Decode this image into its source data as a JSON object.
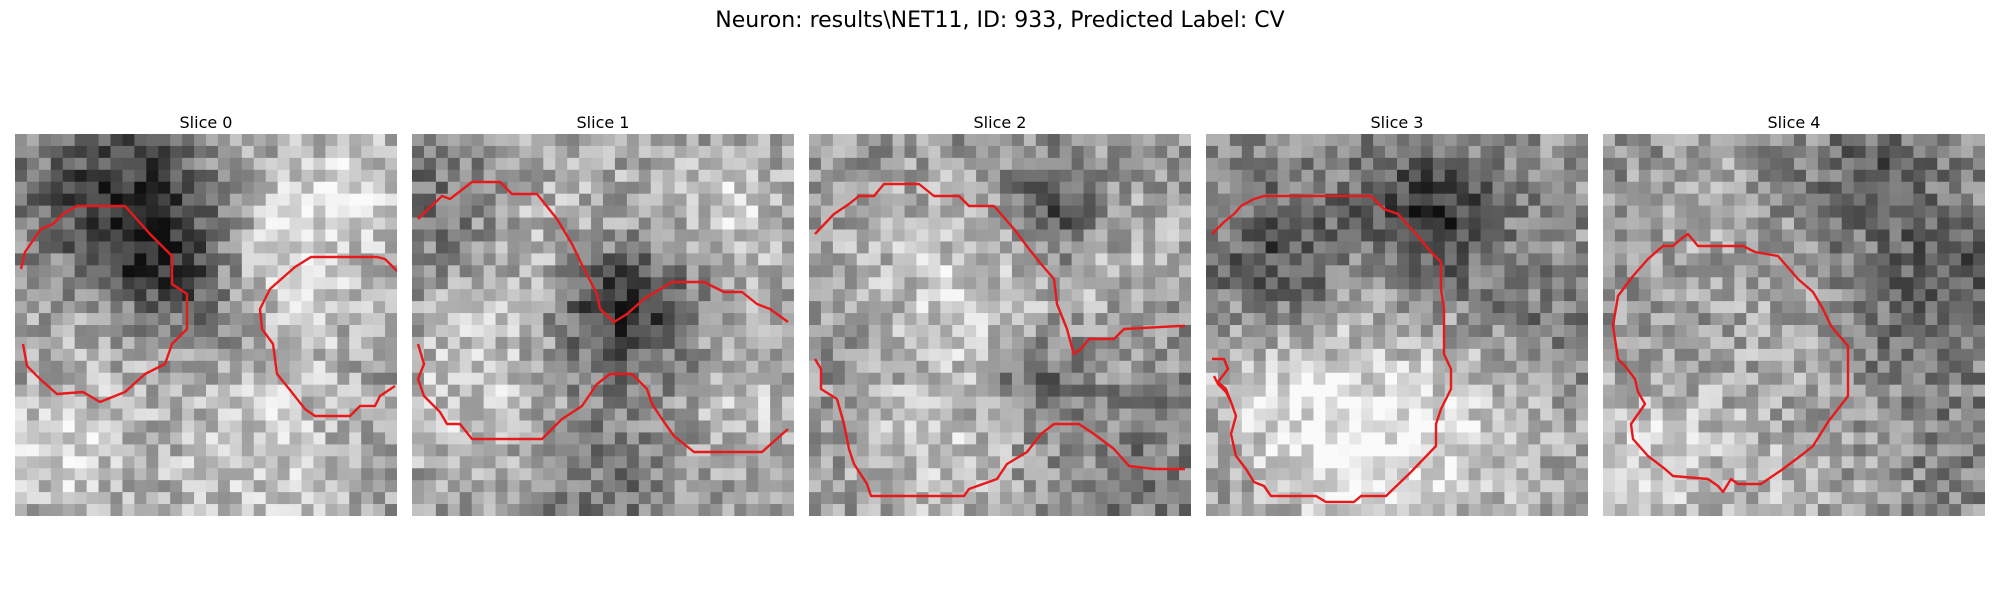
{
  "figure": {
    "title": "Neuron: results\\NET11, ID: 933, Predicted Label: CV"
  },
  "panels": [
    {
      "title": "Slice 0",
      "contour_color": "#e8191b"
    },
    {
      "title": "Slice 1",
      "contour_color": "#e8191b"
    },
    {
      "title": "Slice 2",
      "contour_color": "#e8191b"
    },
    {
      "title": "Slice 3",
      "contour_color": "#e8191b"
    },
    {
      "title": "Slice 4",
      "contour_color": "#e8191b"
    }
  ]
}
